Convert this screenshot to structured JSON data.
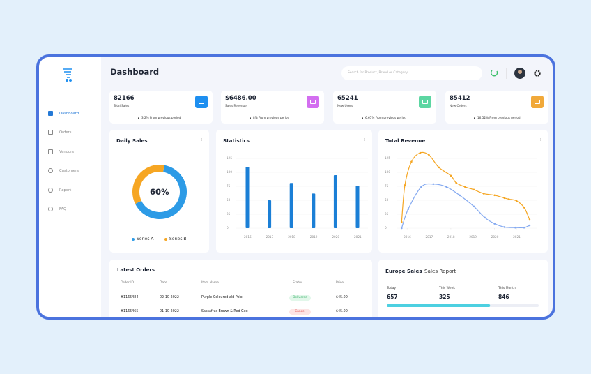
{
  "sidebar": {
    "menu": [
      "Dashboard",
      "Orders",
      "Vendors",
      "Customers",
      "Report",
      "FAQ"
    ]
  },
  "header": {
    "title": "Dashboard",
    "search_placeholder": "Search for Product, Brand or Category"
  },
  "stats": [
    {
      "value": "82166",
      "label": "Total Sales",
      "change": "3.2% From previous period",
      "icon_color": "#1e8ff0"
    },
    {
      "value": "$6486.00",
      "label": "Sales Revenue",
      "change": "8% From previous period",
      "icon_color": "#d36ef0"
    },
    {
      "value": "65241",
      "label": "New Users",
      "change": "6.65% From previous period",
      "icon_color": "#5cd6a2"
    },
    {
      "value": "85412",
      "label": "New Orders",
      "change": "16.52% From previous period",
      "icon_color": "#f1a93a"
    }
  ],
  "chart_data": [
    {
      "type": "pie",
      "title": "Daily Sales",
      "center_label": "60%",
      "categories": [
        "Series A",
        "Series B"
      ],
      "values": [
        65,
        35
      ],
      "colors": [
        "#2d9be6",
        "#f6a623"
      ]
    },
    {
      "type": "bar",
      "title": "Statistics",
      "categories": [
        "2016",
        "2017",
        "2018",
        "2019",
        "2020",
        "2021"
      ],
      "values": [
        110,
        50,
        81,
        62,
        95,
        76
      ],
      "color": "#1b7fd6",
      "ylim": [
        0,
        125
      ],
      "yticks": [
        0,
        25,
        50,
        75,
        100,
        125
      ],
      "grid": true
    },
    {
      "type": "line",
      "title": "Total Revenue",
      "xlim": [
        2015.55,
        2021.92
      ],
      "xticks": [
        2016,
        2017,
        2018,
        2019,
        2020,
        2021
      ],
      "ylim": [
        0,
        140
      ],
      "yticks": [
        0,
        25,
        50,
        75,
        100,
        125
      ],
      "grid": true,
      "series": [
        {
          "color": "#f5a623",
          "x": [
            2015.75,
            2015.9,
            2016.2,
            2016.6,
            2017,
            2017.45,
            2018,
            2018.25,
            2018.65,
            2019.05,
            2019.5,
            2020,
            2020.45,
            2020.65,
            2021,
            2021.35,
            2021.6
          ],
          "values": [
            11,
            77,
            119,
            135,
            131,
            109,
            94,
            81,
            74,
            69,
            62,
            59,
            54,
            52,
            49,
            37,
            15
          ]
        },
        {
          "color": "#84a9f0",
          "x": [
            2015.75,
            2016.05,
            2016.65,
            2017.2,
            2017.8,
            2018.4,
            2019.05,
            2019.55,
            2020,
            2020.45,
            2020.95,
            2021.35,
            2021.6
          ],
          "values": [
            0,
            34,
            74,
            79,
            74,
            59,
            39,
            19,
            8,
            2,
            1,
            1,
            5
          ]
        }
      ]
    }
  ],
  "orders": {
    "title": "Latest Orders",
    "columns": [
      "Order ID",
      "Date",
      "Item Name",
      "Status",
      "Price"
    ],
    "rows": [
      {
        "cells": [
          "#1165484",
          "02-10-2022",
          "Purple-Coloured ald Polo",
          "Delivered",
          "$45.00"
        ],
        "status_color": "#3bb36b",
        "status_bg": "#e2f7ea"
      },
      {
        "cells": [
          "#1165465",
          "01-10-2022",
          "Sassafras Brown & Red Geo",
          "Cancel",
          "$45.00"
        ],
        "status_color": "#e05353",
        "status_bg": "#fde4e4"
      }
    ]
  },
  "europe": {
    "title": "Europe Sales",
    "subtitle": "Sales Report",
    "columns": [
      {
        "label": "Today",
        "value": "657"
      },
      {
        "label": "This Week",
        "value": "325"
      },
      {
        "label": "This Month",
        "value": "846"
      }
    ],
    "progress": 68,
    "progress_color": "#4dd0e1"
  }
}
